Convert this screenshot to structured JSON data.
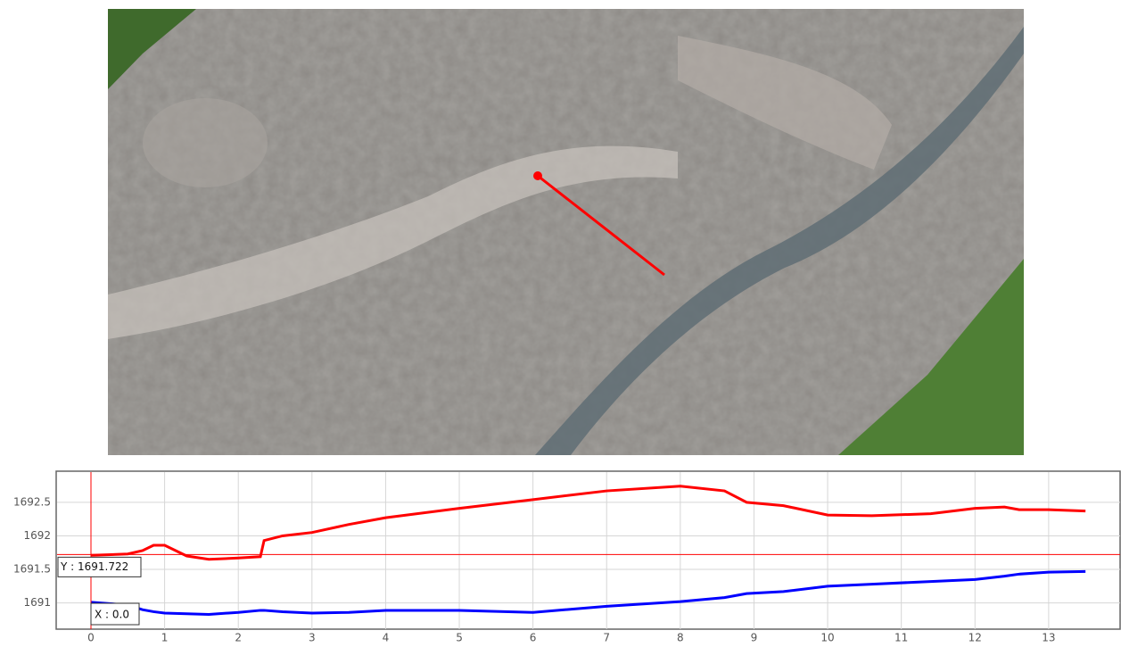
{
  "chart_data": {
    "type": "line",
    "x": [
      0,
      0.5,
      0.7,
      0.85,
      1,
      1.3,
      1.6,
      2,
      2.3,
      2.35,
      2.6,
      3,
      3.5,
      4,
      5,
      6,
      7,
      8,
      8.6,
      8.9,
      9.4,
      10,
      10.6,
      11.4,
      12,
      12.4,
      12.6,
      13,
      13.5
    ],
    "series": [
      {
        "color": "#ff0000",
        "values": [
          1691.71,
          1691.73,
          1691.78,
          1691.86,
          1691.86,
          1691.7,
          1691.65,
          1691.67,
          1691.69,
          1691.93,
          1692.0,
          1692.05,
          1692.17,
          1692.27,
          1692.41,
          1692.54,
          1692.67,
          1692.74,
          1692.67,
          1692.5,
          1692.45,
          1692.31,
          1692.3,
          1692.33,
          1692.41,
          1692.43,
          1692.39,
          1692.39,
          1692.37
        ]
      },
      {
        "color": "#0000ff",
        "values": [
          1691.01,
          1690.97,
          1690.9,
          1690.87,
          1690.85,
          1690.84,
          1690.83,
          1690.86,
          1690.89,
          1690.89,
          1690.87,
          1690.85,
          1690.86,
          1690.89,
          1690.89,
          1690.86,
          1690.95,
          1691.02,
          1691.08,
          1691.14,
          1691.17,
          1691.25,
          1691.28,
          1691.32,
          1691.35,
          1691.4,
          1691.43,
          1691.46,
          1691.47
        ]
      }
    ],
    "xlim": [
      -0.46,
      13.97
    ],
    "ylim": [
      1690.61,
      1692.95
    ],
    "xticks": [
      0,
      1,
      2,
      3,
      4,
      5,
      6,
      7,
      8,
      9,
      10,
      11,
      12,
      13
    ],
    "yticks": [
      1691,
      1691.5,
      1692,
      1692.5
    ],
    "grid": true,
    "crosshair": {
      "x": {
        "value": 0,
        "label": "X : 0.0"
      },
      "y": {
        "value": 1691.722,
        "label": "Y : 1691.722"
      },
      "color": "#ff0000"
    }
  }
}
